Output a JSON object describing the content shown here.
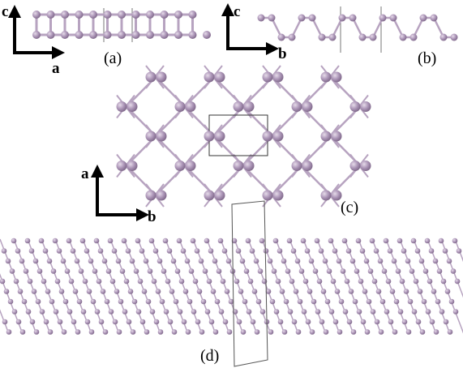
{
  "panels": [
    {
      "label": "(a)",
      "axes": [
        "c",
        "a"
      ]
    },
    {
      "label": "(b)",
      "axes": [
        "c",
        "b"
      ]
    },
    {
      "label": "(c)",
      "axes": [
        "a",
        "b"
      ]
    },
    {
      "label": "(d)"
    }
  ]
}
